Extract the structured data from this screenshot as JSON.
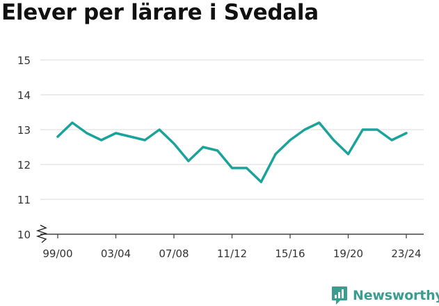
{
  "title": "Elever per lärare i Svedala",
  "brand": {
    "name": "Newsworthy",
    "icon": "newsworthy-logo-icon",
    "color": "#3c9c90"
  },
  "chart_data": {
    "type": "line",
    "title": "Elever per lärare i Svedala",
    "xlabel": "",
    "ylabel": "",
    "ylim": [
      10,
      15
    ],
    "y_ticks": [
      10,
      11,
      12,
      13,
      14,
      15
    ],
    "y_axis_break": true,
    "grid": true,
    "legend": "none",
    "color": "#1aa39a",
    "x": [
      "99/00",
      "00/01",
      "01/02",
      "02/03",
      "03/04",
      "04/05",
      "05/06",
      "06/07",
      "07/08",
      "08/09",
      "09/10",
      "10/11",
      "11/12",
      "12/13",
      "13/14",
      "14/15",
      "15/16",
      "16/17",
      "17/18",
      "18/19",
      "19/20",
      "20/21",
      "21/22",
      "22/23",
      "23/24"
    ],
    "x_tick_labels": [
      "99/00",
      "03/04",
      "07/08",
      "11/12",
      "15/16",
      "19/20",
      "23/24"
    ],
    "series": [
      {
        "values": [
          12.8,
          13.2,
          12.9,
          12.7,
          12.9,
          12.8,
          12.7,
          13.0,
          12.6,
          12.1,
          12.5,
          12.4,
          11.9,
          11.9,
          11.5,
          12.3,
          12.7,
          13.0,
          13.2,
          12.7,
          12.3,
          13.0,
          13.0,
          12.7,
          12.9
        ]
      }
    ]
  }
}
